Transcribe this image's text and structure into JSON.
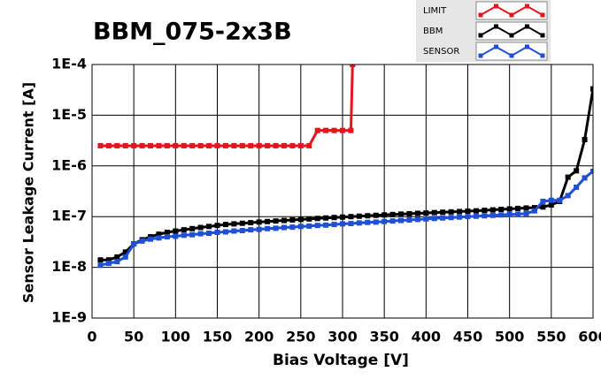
{
  "chart_data": {
    "type": "line",
    "title": "BBM_075-2x3B",
    "xlabel": "Bias Voltage [V]",
    "ylabel": "Sensor Leakage Current [A]",
    "xlim": [
      0,
      600
    ],
    "xticks": [
      0,
      50,
      100,
      150,
      200,
      250,
      300,
      350,
      400,
      450,
      500,
      550,
      600
    ],
    "ylim": [
      1e-09,
      0.0001
    ],
    "log_y": true,
    "grid": true,
    "legend": "upper right",
    "yticks": [
      {
        "value": 1e-09,
        "label": "1E-9"
      },
      {
        "value": 1e-08,
        "label": "1E-8"
      },
      {
        "value": 1e-07,
        "label": "1E-7"
      },
      {
        "value": 1e-06,
        "label": "1E-6"
      },
      {
        "value": 1e-05,
        "label": "1E-5"
      },
      {
        "value": 0.0001,
        "label": "1E-4"
      }
    ],
    "series": [
      {
        "name": "LIMIT",
        "color": "#e8141c",
        "x": [
          10,
          20,
          30,
          40,
          50,
          60,
          70,
          80,
          90,
          100,
          110,
          120,
          130,
          140,
          150,
          160,
          170,
          180,
          190,
          200,
          210,
          220,
          230,
          240,
          250,
          260,
          270,
          280,
          290,
          300,
          310,
          312
        ],
        "values": [
          2.5e-06,
          2.5e-06,
          2.5e-06,
          2.5e-06,
          2.5e-06,
          2.5e-06,
          2.5e-06,
          2.5e-06,
          2.5e-06,
          2.5e-06,
          2.5e-06,
          2.5e-06,
          2.5e-06,
          2.5e-06,
          2.5e-06,
          2.5e-06,
          2.5e-06,
          2.5e-06,
          2.5e-06,
          2.5e-06,
          2.5e-06,
          2.5e-06,
          2.5e-06,
          2.5e-06,
          2.5e-06,
          2.5e-06,
          5e-06,
          5e-06,
          5e-06,
          5e-06,
          5e-06,
          0.0001
        ]
      },
      {
        "name": "BBM",
        "color": "#000000",
        "x": [
          10,
          20,
          30,
          40,
          50,
          60,
          70,
          80,
          90,
          100,
          110,
          120,
          130,
          140,
          150,
          160,
          170,
          180,
          190,
          200,
          210,
          220,
          230,
          240,
          250,
          260,
          270,
          280,
          290,
          300,
          310,
          320,
          330,
          340,
          350,
          360,
          370,
          380,
          390,
          400,
          410,
          420,
          430,
          440,
          450,
          460,
          470,
          480,
          490,
          500,
          510,
          520,
          530,
          540,
          550,
          560,
          570,
          580,
          590,
          600
        ],
        "values": [
          1.4e-08,
          1.4e-08,
          1.6e-08,
          2e-08,
          2.9e-08,
          3.5e-08,
          4e-08,
          4.5e-08,
          4.9e-08,
          5.2e-08,
          5.5e-08,
          5.8e-08,
          6.1e-08,
          6.4e-08,
          6.7e-08,
          7e-08,
          7.2e-08,
          7.4e-08,
          7.6e-08,
          7.8e-08,
          8e-08,
          8.2e-08,
          8.4e-08,
          8.6e-08,
          8.8e-08,
          9e-08,
          9.2e-08,
          9.4e-08,
          9.6e-08,
          9.8e-08,
          1e-07,
          1.02e-07,
          1.04e-07,
          1.06e-07,
          1.08e-07,
          1.1e-07,
          1.12e-07,
          1.14e-07,
          1.16e-07,
          1.18e-07,
          1.2e-07,
          1.22e-07,
          1.24e-07,
          1.26e-07,
          1.28e-07,
          1.3e-07,
          1.33e-07,
          1.36e-07,
          1.39e-07,
          1.42e-07,
          1.45e-07,
          1.48e-07,
          1.5e-07,
          1.55e-07,
          1.7e-07,
          2e-07,
          6e-07,
          8e-07,
          3.3e-06,
          3.3e-05
        ]
      },
      {
        "name": "SENSOR",
        "color": "#1f4fd6",
        "x": [
          10,
          20,
          30,
          40,
          50,
          60,
          70,
          80,
          90,
          100,
          110,
          120,
          130,
          140,
          150,
          160,
          170,
          180,
          190,
          200,
          210,
          220,
          230,
          240,
          250,
          260,
          270,
          280,
          290,
          300,
          310,
          320,
          330,
          340,
          350,
          360,
          370,
          380,
          390,
          400,
          410,
          420,
          430,
          440,
          450,
          460,
          470,
          480,
          490,
          500,
          510,
          520,
          530,
          540,
          550,
          560,
          570,
          580,
          590,
          600
        ],
        "values": [
          1.1e-08,
          1.2e-08,
          1.3e-08,
          1.6e-08,
          2.9e-08,
          3.3e-08,
          3.6e-08,
          3.8e-08,
          4e-08,
          4.1e-08,
          4.3e-08,
          4.4e-08,
          4.6e-08,
          4.7e-08,
          4.9e-08,
          5e-08,
          5.2e-08,
          5.3e-08,
          5.5e-08,
          5.6e-08,
          5.8e-08,
          5.9e-08,
          6.1e-08,
          6.2e-08,
          6.4e-08,
          6.5e-08,
          6.7e-08,
          6.8e-08,
          7e-08,
          7.2e-08,
          7.3e-08,
          7.5e-08,
          7.7e-08,
          7.8e-08,
          8e-08,
          8.2e-08,
          8.4e-08,
          8.6e-08,
          8.8e-08,
          9e-08,
          9.2e-08,
          9.4e-08,
          9.6e-08,
          9.8e-08,
          1e-07,
          1.02e-07,
          1.04e-07,
          1.06e-07,
          1.08e-07,
          1.1e-07,
          1.12e-07,
          1.15e-07,
          1.3e-07,
          2e-07,
          2.1e-07,
          2.1e-07,
          2.6e-07,
          3.8e-07,
          5.8e-07,
          7.8e-07
        ]
      }
    ]
  }
}
